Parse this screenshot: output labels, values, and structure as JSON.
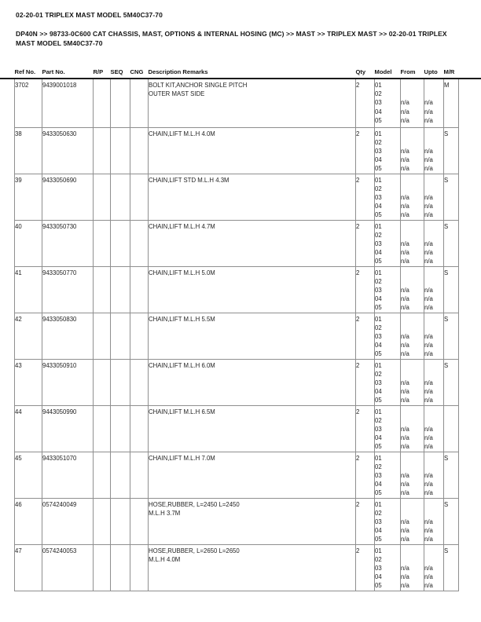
{
  "page": {
    "title": "02-20-01 TRIPLEX MAST MODEL 5M40C37-70",
    "breadcrumb": "DP40N >> 98733-0C600 CAT CHASSIS, MAST, OPTIONS & INTERNAL HOSING (MC) >> MAST >> TRIPLEX MAST >> 02-20-01 TRIPLEX MAST MODEL 5M40C37-70"
  },
  "colors": {
    "text": "#1f1f1f",
    "grid_line": "#8f8f8f",
    "header_rule": "#1a1a1a",
    "background": "#ffffff"
  },
  "table": {
    "columns": [
      "Ref No.",
      "Part No.",
      "R/P",
      "SEQ",
      "CNG",
      "Description Remarks",
      "Qty",
      "Model",
      "From",
      "Upto",
      "M/R"
    ],
    "rows": [
      {
        "ref": "3702",
        "part": "9439001018",
        "rp": "",
        "seq": "",
        "cng": "",
        "description": [
          "BOLT KIT,ANCHOR SINGLE PITCH",
          "OUTER MAST SIDE"
        ],
        "qty": "2",
        "models": [
          "01",
          "02",
          "03",
          "04",
          "05"
        ],
        "from": [
          "",
          "",
          "n/a",
          "n/a",
          "n/a"
        ],
        "upto": [
          "",
          "",
          "n/a",
          "n/a",
          "n/a"
        ],
        "mr": "M"
      },
      {
        "ref": "38",
        "part": "9433050630",
        "rp": "",
        "seq": "",
        "cng": "",
        "description": [
          "CHAIN,LIFT M.L.H 4.0M"
        ],
        "qty": "2",
        "models": [
          "01",
          "02",
          "03",
          "04",
          "05"
        ],
        "from": [
          "",
          "",
          "n/a",
          "n/a",
          "n/a"
        ],
        "upto": [
          "",
          "",
          "n/a",
          "n/a",
          "n/a"
        ],
        "mr": "S"
      },
      {
        "ref": "39",
        "part": "9433050690",
        "rp": "",
        "seq": "",
        "cng": "",
        "description": [
          "CHAIN,LIFT STD M.L.H 4.3M"
        ],
        "qty": "2",
        "models": [
          "01",
          "02",
          "03",
          "04",
          "05"
        ],
        "from": [
          "",
          "",
          "n/a",
          "n/a",
          "n/a"
        ],
        "upto": [
          "",
          "",
          "n/a",
          "n/a",
          "n/a"
        ],
        "mr": "S"
      },
      {
        "ref": "40",
        "part": "9433050730",
        "rp": "",
        "seq": "",
        "cng": "",
        "description": [
          "CHAIN,LIFT M.L.H 4.7M"
        ],
        "qty": "2",
        "models": [
          "01",
          "02",
          "03",
          "04",
          "05"
        ],
        "from": [
          "",
          "",
          "n/a",
          "n/a",
          "n/a"
        ],
        "upto": [
          "",
          "",
          "n/a",
          "n/a",
          "n/a"
        ],
        "mr": "S"
      },
      {
        "ref": "41",
        "part": "9433050770",
        "rp": "",
        "seq": "",
        "cng": "",
        "description": [
          "CHAIN,LIFT M.L.H 5.0M"
        ],
        "qty": "2",
        "models": [
          "01",
          "02",
          "03",
          "04",
          "05"
        ],
        "from": [
          "",
          "",
          "n/a",
          "n/a",
          "n/a"
        ],
        "upto": [
          "",
          "",
          "n/a",
          "n/a",
          "n/a"
        ],
        "mr": "S"
      },
      {
        "ref": "42",
        "part": "9433050830",
        "rp": "",
        "seq": "",
        "cng": "",
        "description": [
          "CHAIN,LIFT M.L.H 5.5M"
        ],
        "qty": "2",
        "models": [
          "01",
          "02",
          "03",
          "04",
          "05"
        ],
        "from": [
          "",
          "",
          "n/a",
          "n/a",
          "n/a"
        ],
        "upto": [
          "",
          "",
          "n/a",
          "n/a",
          "n/a"
        ],
        "mr": "S"
      },
      {
        "ref": "43",
        "part": "9433050910",
        "rp": "",
        "seq": "",
        "cng": "",
        "description": [
          "CHAIN,LIFT M.L.H 6.0M"
        ],
        "qty": "2",
        "models": [
          "01",
          "02",
          "03",
          "04",
          "05"
        ],
        "from": [
          "",
          "",
          "n/a",
          "n/a",
          "n/a"
        ],
        "upto": [
          "",
          "",
          "n/a",
          "n/a",
          "n/a"
        ],
        "mr": "S"
      },
      {
        "ref": "44",
        "part": "9443050990",
        "rp": "",
        "seq": "",
        "cng": "",
        "description": [
          "CHAIN,LIFT M.L.H 6.5M"
        ],
        "qty": "2",
        "models": [
          "01",
          "02",
          "03",
          "04",
          "05"
        ],
        "from": [
          "",
          "",
          "n/a",
          "n/a",
          "n/a"
        ],
        "upto": [
          "",
          "",
          "n/a",
          "n/a",
          "n/a"
        ],
        "mr": ""
      },
      {
        "ref": "45",
        "part": "9433051070",
        "rp": "",
        "seq": "",
        "cng": "",
        "description": [
          "CHAIN,LIFT M.L.H 7.0M"
        ],
        "qty": "2",
        "models": [
          "01",
          "02",
          "03",
          "04",
          "05"
        ],
        "from": [
          "",
          "",
          "n/a",
          "n/a",
          "n/a"
        ],
        "upto": [
          "",
          "",
          "n/a",
          "n/a",
          "n/a"
        ],
        "mr": "S"
      },
      {
        "ref": "46",
        "part": "0574240049",
        "rp": "",
        "seq": "",
        "cng": "",
        "description": [
          "HOSE,RUBBER, L=2450 L=2450",
          "M.L.H 3.7M"
        ],
        "qty": "2",
        "models": [
          "01",
          "02",
          "03",
          "04",
          "05"
        ],
        "from": [
          "",
          "",
          "n/a",
          "n/a",
          "n/a"
        ],
        "upto": [
          "",
          "",
          "n/a",
          "n/a",
          "n/a"
        ],
        "mr": "S"
      },
      {
        "ref": "47",
        "part": "0574240053",
        "rp": "",
        "seq": "",
        "cng": "",
        "description": [
          "HOSE,RUBBER, L=2650 L=2650",
          "M.L.H 4.0M"
        ],
        "qty": "2",
        "models": [
          "01",
          "02",
          "03",
          "04",
          "05"
        ],
        "from": [
          "",
          "",
          "n/a",
          "n/a",
          "n/a"
        ],
        "upto": [
          "",
          "",
          "n/a",
          "n/a",
          "n/a"
        ],
        "mr": "S"
      }
    ]
  }
}
